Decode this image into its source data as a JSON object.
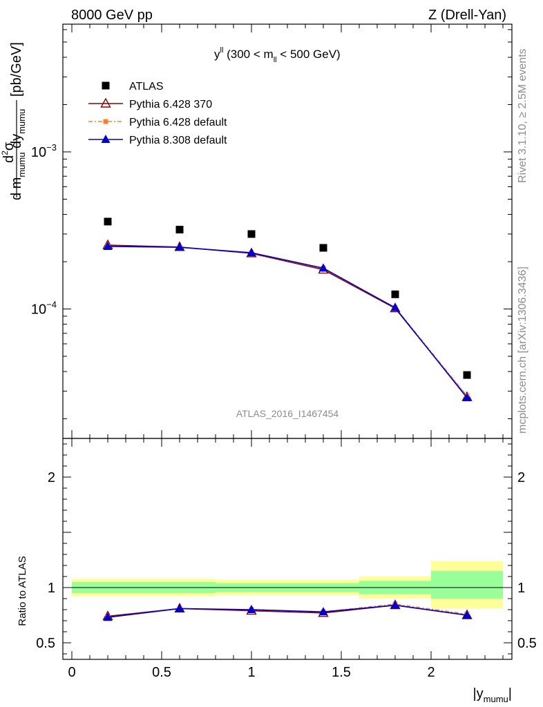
{
  "header": {
    "left": "8000 GeV pp",
    "right": "Z (Drell-Yan)"
  },
  "side_text": {
    "rivet": "Rivet 3.1.10, ≥ 2.5M events",
    "site": "mcplots.cern.ch [arXiv:1306.3436]"
  },
  "watermark": "ATLAS_2016_I1467454",
  "chart_data": [
    {
      "type": "line",
      "panel": "main",
      "title": "y^{ll} (300 < m_{ll} < 500 GeV)",
      "title_parts": {
        "main": "y",
        "sup": "ll",
        "pre": " (300 < m",
        "sub": "ll",
        "post": " < 500 GeV)"
      },
      "ylabel": "d²σ / d m_mumu dy_mumu [pb/GeV]",
      "ylabel_parts": {
        "num_d": "d",
        "num_2": "2",
        "num_sigma": "σ",
        "den_dm": "d m",
        "den_sub1": "mumu",
        "den_dy": " dy",
        "den_sub2": "mumu",
        "unit": "[pb/GeV]"
      },
      "yscale": "log",
      "ylim": [
        1.5e-05,
        0.0065
      ],
      "xlim": [
        -0.05,
        2.45
      ],
      "y_ticks": [
        {
          "value": 0.0001,
          "base": "10",
          "exp": "−4"
        },
        {
          "value": 0.001,
          "base": "10",
          "exp": "−3"
        }
      ],
      "x": [
        0.2,
        0.6,
        1.0,
        1.4,
        1.8,
        2.2
      ],
      "series": [
        {
          "name": "ATLAS",
          "color": "#000000",
          "marker": "square",
          "values": [
            0.00036,
            0.00032,
            0.0003,
            0.000245,
            0.000124,
            3.8e-05
          ]
        },
        {
          "name": "Pythia 6.428 370",
          "color": "#8b0000",
          "marker": "open-triangle",
          "values": [
            0.000255,
            0.000248,
            0.000226,
            0.000178,
            0.000101,
            2.75e-05
          ]
        },
        {
          "name": "Pythia 6.428 default",
          "color": "#f58231",
          "marker": "filled-square",
          "dashed": true,
          "values": [
            0.00025,
            0.000247,
            0.000228,
            0.000181,
            0.000102,
            2.8e-05
          ]
        },
        {
          "name": "Pythia 8.308 default",
          "color": "#0000cc",
          "marker": "filled-triangle",
          "values": [
            0.00025,
            0.000247,
            0.000228,
            0.000182,
            0.000102,
            2.72e-05
          ]
        }
      ],
      "legend_position": "top-left"
    },
    {
      "type": "line",
      "panel": "ratio",
      "ylabel": "Ratio to ATLAS",
      "xlabel": "|y_mumu|",
      "xlabel_parts": {
        "main": "|y",
        "sub": "mumu",
        "post": "|"
      },
      "ylim": [
        0.35,
        2.35
      ],
      "xlim": [
        -0.05,
        2.45
      ],
      "y_ticks": [
        {
          "value": 0.5,
          "label": "0.5"
        },
        {
          "value": 1,
          "label": "1"
        },
        {
          "value": 2,
          "label": "2"
        }
      ],
      "x_ticks": [
        {
          "value": 0,
          "label": "0"
        },
        {
          "value": 0.5,
          "label": "0.5"
        },
        {
          "value": 1,
          "label": "1"
        },
        {
          "value": 1.5,
          "label": "1.5"
        },
        {
          "value": 2,
          "label": "2"
        }
      ],
      "bins": [
        [
          0.0,
          0.4
        ],
        [
          0.4,
          0.8
        ],
        [
          0.8,
          1.2
        ],
        [
          1.2,
          1.6
        ],
        [
          1.6,
          2.0
        ],
        [
          2.0,
          2.4
        ]
      ],
      "band_inner": [
        [
          0.95,
          1.05
        ],
        [
          0.95,
          1.05
        ],
        [
          0.96,
          1.04
        ],
        [
          0.96,
          1.04
        ],
        [
          0.94,
          1.06
        ],
        [
          0.9,
          1.15
        ]
      ],
      "band_outer": [
        [
          0.92,
          1.08
        ],
        [
          0.92,
          1.08
        ],
        [
          0.93,
          1.07
        ],
        [
          0.93,
          1.07
        ],
        [
          0.9,
          1.1
        ],
        [
          0.81,
          1.24
        ]
      ],
      "band_colors": {
        "inner": "#99ff99",
        "outer": "#ffff99"
      },
      "x": [
        0.2,
        0.6,
        1.0,
        1.4,
        1.8,
        2.2
      ],
      "series": [
        {
          "name": "Pythia 6.428 370",
          "color": "#8b0000",
          "marker": "open-triangle",
          "values": [
            0.74,
            0.81,
            0.79,
            0.77,
            0.84,
            0.75
          ]
        },
        {
          "name": "Pythia 6.428 default",
          "color": "#f58231",
          "marker": "filled-square",
          "dashed": true,
          "values": [
            0.73,
            0.81,
            0.8,
            0.78,
            0.85,
            0.76
          ]
        },
        {
          "name": "Pythia 8.308 default",
          "color": "#0000cc",
          "marker": "filled-triangle",
          "values": [
            0.73,
            0.81,
            0.8,
            0.78,
            0.84,
            0.75
          ]
        }
      ]
    }
  ]
}
